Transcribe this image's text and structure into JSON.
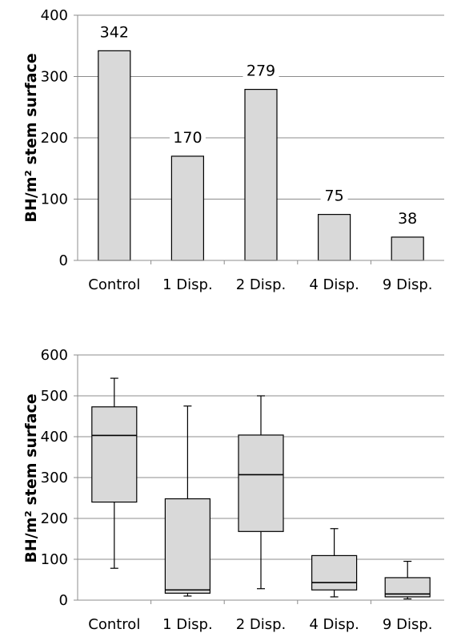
{
  "chart_data": [
    {
      "type": "bar",
      "categories": [
        "Control",
        "1 Disp.",
        "2 Disp.",
        "4 Disp.",
        "9 Disp."
      ],
      "values": [
        342,
        170,
        279,
        75,
        38
      ],
      "data_labels": [
        "342",
        "170",
        "279",
        "75",
        "38"
      ],
      "ylabel": "BH/m² stem surface",
      "ylim": [
        0,
        400
      ],
      "yticks": [
        0,
        100,
        200,
        300,
        400
      ],
      "grid": true,
      "bar_color": "#d9d9d9",
      "edge_color": "#000000"
    },
    {
      "type": "box",
      "categories": [
        "Control",
        "1 Disp.",
        "2 Disp.",
        "4 Disp.",
        "9 Disp."
      ],
      "boxes": [
        {
          "min": 78,
          "q1": 240,
          "median": 403,
          "q3": 473,
          "max": 543
        },
        {
          "min": 10,
          "q1": 17,
          "median": 25,
          "q3": 248,
          "max": 475
        },
        {
          "min": 28,
          "q1": 168,
          "median": 307,
          "q3": 404,
          "max": 500
        },
        {
          "min": 8,
          "q1": 25,
          "median": 43,
          "q3": 109,
          "max": 175
        },
        {
          "min": 3,
          "q1": 8,
          "median": 15,
          "q3": 55,
          "max": 95
        }
      ],
      "ylabel": "BH/m² stem surface",
      "ylim": [
        0,
        600
      ],
      "yticks": [
        0,
        100,
        200,
        300,
        400,
        500,
        600
      ],
      "grid": true,
      "box_color": "#d9d9d9",
      "edge_color": "#000000"
    }
  ]
}
